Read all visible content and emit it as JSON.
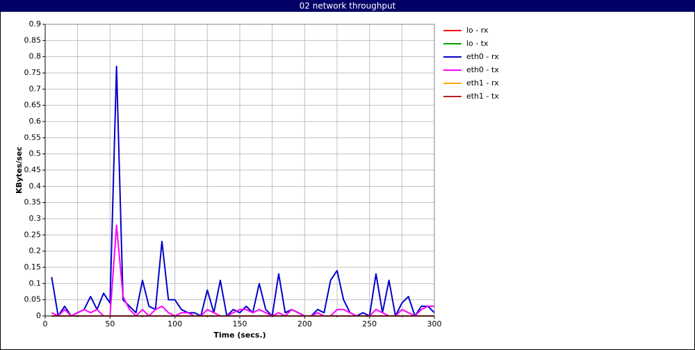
{
  "chart_data": {
    "type": "line",
    "title": "02 network throughput",
    "xlabel": "Time (secs.)",
    "ylabel": "KBytes/sec",
    "xlim": [
      0,
      300
    ],
    "ylim": [
      0,
      0.9
    ],
    "xticks": [
      0,
      50,
      100,
      150,
      200,
      250,
      300
    ],
    "xminorticks": [
      25,
      75,
      125,
      175,
      225,
      275
    ],
    "yticks": [
      0,
      0.05,
      0.1,
      0.15,
      0.2,
      0.25,
      0.3,
      0.35,
      0.4,
      0.45,
      0.5,
      0.55,
      0.6,
      0.65,
      0.7,
      0.75,
      0.8,
      0.85,
      0.9
    ],
    "grid": true,
    "legend": "right",
    "x": [
      5,
      10,
      15,
      20,
      25,
      30,
      35,
      40,
      45,
      50,
      55,
      60,
      65,
      70,
      75,
      80,
      85,
      90,
      95,
      100,
      105,
      110,
      115,
      120,
      125,
      130,
      135,
      140,
      145,
      150,
      155,
      160,
      165,
      170,
      175,
      180,
      185,
      190,
      195,
      200,
      205,
      210,
      215,
      220,
      225,
      230,
      235,
      240,
      245,
      250,
      255,
      260,
      265,
      270,
      275,
      280,
      285,
      290,
      295,
      300
    ],
    "series": [
      {
        "name": "lo - rx",
        "color": "#ff0000",
        "values": [
          0,
          0,
          0,
          0,
          0,
          0,
          0,
          0,
          0,
          0,
          0,
          0,
          0,
          0,
          0,
          0,
          0,
          0,
          0,
          0,
          0,
          0,
          0,
          0,
          0,
          0,
          0,
          0,
          0,
          0,
          0,
          0,
          0,
          0,
          0,
          0,
          0,
          0,
          0,
          0,
          0,
          0,
          0,
          0,
          0,
          0,
          0,
          0,
          0,
          0,
          0,
          0,
          0,
          0,
          0,
          0,
          0,
          0,
          0,
          0
        ]
      },
      {
        "name": "lo - tx",
        "color": "#00a000",
        "values": [
          0,
          0,
          0,
          0,
          0,
          0,
          0,
          0,
          0,
          0,
          0,
          0,
          0,
          0,
          0,
          0,
          0,
          0,
          0,
          0,
          0,
          0,
          0,
          0,
          0,
          0,
          0,
          0,
          0,
          0,
          0,
          0,
          0,
          0,
          0,
          0,
          0,
          0,
          0,
          0,
          0,
          0,
          0,
          0,
          0,
          0,
          0,
          0,
          0,
          0,
          0,
          0,
          0,
          0,
          0,
          0,
          0,
          0,
          0,
          0
        ]
      },
      {
        "name": "eth0 - rx",
        "color": "#0000cc",
        "values": [
          0.12,
          0,
          0.03,
          0,
          0.01,
          0.02,
          0.06,
          0.02,
          0.07,
          0.04,
          0.77,
          0.05,
          0.03,
          0.01,
          0.11,
          0.03,
          0.02,
          0.23,
          0.05,
          0.05,
          0.02,
          0.01,
          0.01,
          0,
          0.08,
          0.01,
          0.11,
          0,
          0.02,
          0.01,
          0.03,
          0.01,
          0.1,
          0.02,
          0,
          0.13,
          0.01,
          0.02,
          0.01,
          0,
          0,
          0.02,
          0.01,
          0.11,
          0.14,
          0.05,
          0.01,
          0,
          0.01,
          0,
          0.13,
          0.01,
          0.11,
          0,
          0.04,
          0.06,
          0,
          0.03,
          0.03,
          0.01
        ]
      },
      {
        "name": "eth0 - tx",
        "color": "#ff00ff",
        "values": [
          0.01,
          0,
          0.02,
          0,
          0.01,
          0.02,
          0.01,
          0.02,
          0,
          0,
          0.28,
          0.06,
          0.02,
          0,
          0.02,
          0,
          0.02,
          0.03,
          0.01,
          0,
          0.01,
          0.01,
          0,
          0,
          0.02,
          0.01,
          0,
          0,
          0.01,
          0.02,
          0.02,
          0.01,
          0.02,
          0.01,
          0,
          0.01,
          0,
          0.02,
          0.01,
          0,
          0,
          0.01,
          0,
          0,
          0.02,
          0.02,
          0.01,
          0,
          0,
          0,
          0.02,
          0.01,
          0,
          0,
          0.02,
          0.01,
          0,
          0.02,
          0.03,
          0.03
        ]
      },
      {
        "name": "eth1 - rx",
        "color": "#ffa500",
        "values": [
          0,
          0,
          0,
          0,
          0,
          0,
          0,
          0,
          0,
          0,
          0,
          0,
          0,
          0,
          0,
          0,
          0,
          0,
          0,
          0,
          0,
          0,
          0,
          0,
          0,
          0,
          0,
          0,
          0,
          0,
          0,
          0,
          0,
          0,
          0,
          0,
          0,
          0,
          0,
          0,
          0,
          0,
          0,
          0,
          0,
          0,
          0,
          0,
          0,
          0,
          0,
          0,
          0,
          0,
          0,
          0,
          0,
          0,
          0,
          0
        ]
      },
      {
        "name": "eth1 - tx",
        "color": "#b22222",
        "values": [
          0,
          0,
          0,
          0,
          0,
          0,
          0,
          0,
          0,
          0,
          0,
          0,
          0,
          0,
          0,
          0,
          0,
          0,
          0,
          0,
          0,
          0,
          0,
          0,
          0,
          0,
          0,
          0,
          0,
          0,
          0,
          0,
          0,
          0,
          0,
          0,
          0,
          0,
          0,
          0,
          0,
          0,
          0,
          0,
          0,
          0,
          0,
          0,
          0,
          0,
          0,
          0,
          0,
          0,
          0,
          0,
          0,
          0,
          0,
          0
        ]
      }
    ]
  }
}
